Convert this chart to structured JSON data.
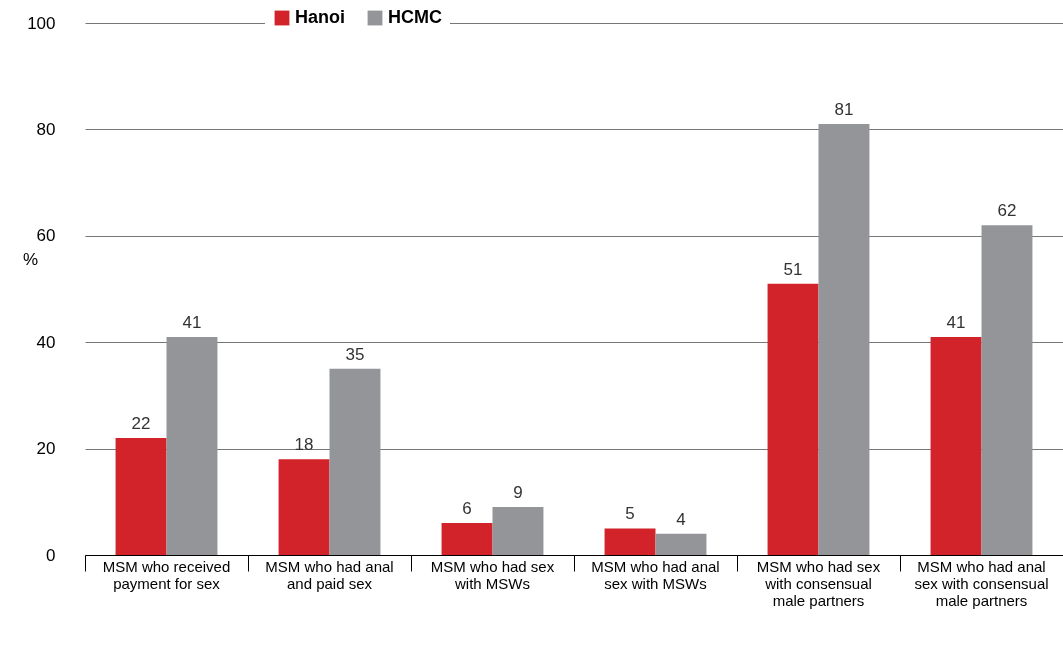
{
  "chart_data": {
    "type": "bar",
    "ylabel": "%",
    "categories": [
      "MSM who received payment for sex",
      "MSM who had anal and paid sex",
      "MSM who had sex with MSWs",
      "MSM who had anal sex with MSWs",
      "MSM who had sex with consensual male partners",
      "MSM who had anal sex with consensual male partners"
    ],
    "series": [
      {
        "name": "Hanoi",
        "color": "#d2232a",
        "values": [
          22,
          18,
          6,
          5,
          51,
          41
        ]
      },
      {
        "name": "HCMC",
        "color": "#939598",
        "values": [
          41,
          35,
          9,
          4,
          81,
          62
        ]
      }
    ],
    "ylim": [
      0,
      100
    ],
    "yticks": [
      0,
      20,
      40,
      60,
      80,
      100
    ],
    "grid": "y",
    "legend": "top",
    "data_labels": true
  }
}
